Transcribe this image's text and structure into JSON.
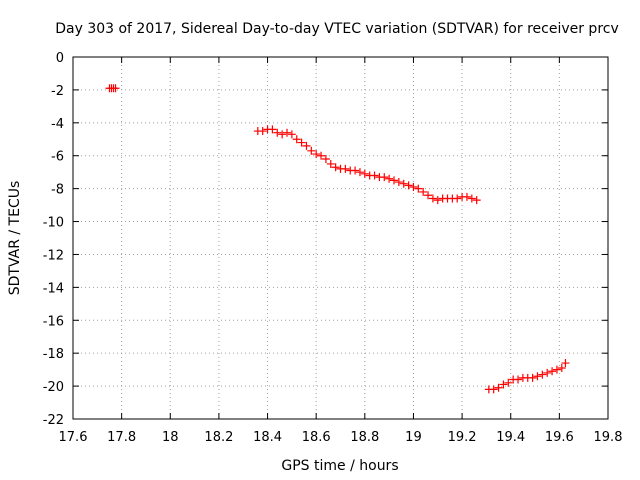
{
  "chart_data": {
    "type": "scatter",
    "title": "Day 303 of 2017, Sidereal Day-to-day VTEC variation (SDTVAR) for receiver prcv",
    "xlabel": "GPS time / hours",
    "ylabel": "SDTVAR / TECUs",
    "xlim": [
      17.6,
      19.8
    ],
    "ylim": [
      -22,
      0
    ],
    "xticks": [
      17.6,
      17.8,
      18,
      18.2,
      18.4,
      18.6,
      18.8,
      19,
      19.2,
      19.4,
      19.6,
      19.8
    ],
    "xtick_labels": [
      "17.6",
      "17.8",
      "18",
      "18.2",
      "18.4",
      "18.6",
      "18.8",
      "19",
      "19.2",
      "19.4",
      "19.6",
      "19.8"
    ],
    "yticks": [
      0,
      -2,
      -4,
      -6,
      -8,
      -10,
      -12,
      -14,
      -16,
      -18,
      -20,
      -22
    ],
    "ytick_labels": [
      "0",
      "-2",
      "-4",
      "-6",
      "-8",
      "-10",
      "-12",
      "-14",
      "-16",
      "-18",
      "-20",
      "-22"
    ],
    "grid": true,
    "marker": "+",
    "color": "#ff0000",
    "series": [
      {
        "name": "segment-1",
        "x": [
          17.75,
          17.7583,
          17.7667,
          17.775
        ],
        "y": [
          -1.9,
          -1.9,
          -1.9,
          -1.9
        ]
      },
      {
        "name": "segment-2",
        "x": [
          18.36,
          18.38,
          18.4,
          18.42,
          18.44,
          18.46,
          18.48,
          18.5,
          18.52,
          18.54,
          18.56,
          18.58,
          18.6,
          18.62,
          18.64,
          18.66,
          18.68,
          18.7,
          18.72,
          18.74,
          18.76,
          18.78,
          18.8,
          18.82,
          18.84,
          18.86,
          18.88,
          18.9,
          18.92,
          18.94,
          18.96,
          18.98,
          19.0,
          19.02,
          19.04,
          19.06,
          19.08,
          19.1,
          19.12,
          19.14,
          19.16,
          19.18,
          19.2,
          19.22,
          19.24,
          19.26
        ],
        "y": [
          -4.5,
          -4.5,
          -4.4,
          -4.4,
          -4.6,
          -4.7,
          -4.6,
          -4.7,
          -5.0,
          -5.2,
          -5.4,
          -5.7,
          -5.9,
          -6.0,
          -6.2,
          -6.5,
          -6.7,
          -6.8,
          -6.8,
          -6.9,
          -6.9,
          -7.0,
          -7.1,
          -7.2,
          -7.2,
          -7.3,
          -7.3,
          -7.4,
          -7.5,
          -7.6,
          -7.7,
          -7.8,
          -7.9,
          -8.0,
          -8.2,
          -8.4,
          -8.6,
          -8.7,
          -8.6,
          -8.6,
          -8.6,
          -8.6,
          -8.5,
          -8.5,
          -8.6,
          -8.7
        ]
      },
      {
        "name": "segment-3",
        "x": [
          19.31,
          19.33,
          19.35,
          19.37,
          19.39,
          19.41,
          19.43,
          19.45,
          19.47,
          19.49,
          19.51,
          19.53,
          19.55,
          19.57,
          19.59,
          19.61,
          19.625
        ],
        "y": [
          -20.2,
          -20.2,
          -20.1,
          -19.9,
          -19.8,
          -19.6,
          -19.6,
          -19.5,
          -19.5,
          -19.5,
          -19.4,
          -19.3,
          -19.2,
          -19.1,
          -19.0,
          -18.9,
          -18.6
        ]
      }
    ]
  }
}
